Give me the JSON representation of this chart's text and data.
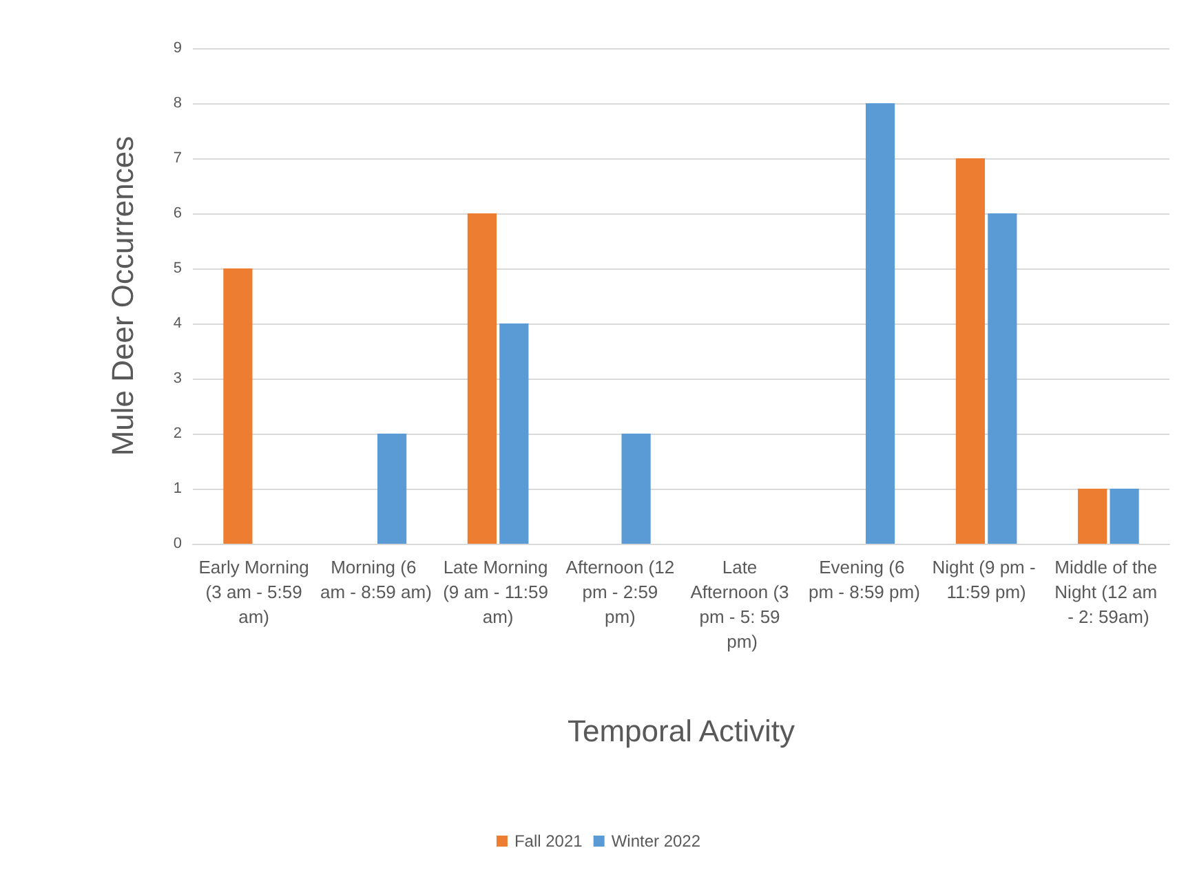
{
  "chart_data": {
    "type": "bar",
    "xlabel": "Temporal Activity",
    "ylabel": "Mule Deer Occurrences",
    "categories": [
      "Early Morning (3 am - 5:59 am)",
      "Morning (6 am - 8:59 am)",
      "Late Morning (9 am - 11:59 am)",
      "Afternoon (12 pm - 2:59 pm)",
      "Late Afternoon (3 pm - 5: 59 pm)",
      "Evening (6 pm - 8:59 pm)",
      "Night (9 pm - 11:59 pm)",
      "Middle of the Night (12 am - 2: 59am)"
    ],
    "series": [
      {
        "name": "Fall 2021",
        "color": "#ed7d31",
        "values": [
          5,
          0,
          6,
          0,
          0,
          0,
          7,
          1
        ]
      },
      {
        "name": "Winter 2022",
        "color": "#5b9bd5",
        "values": [
          0,
          2,
          4,
          2,
          0,
          8,
          6,
          1
        ]
      }
    ],
    "ylim": [
      0,
      9
    ],
    "yticks": [
      0,
      1,
      2,
      3,
      4,
      5,
      6,
      7,
      8,
      9
    ],
    "grid": "y",
    "legend": "bottom"
  }
}
